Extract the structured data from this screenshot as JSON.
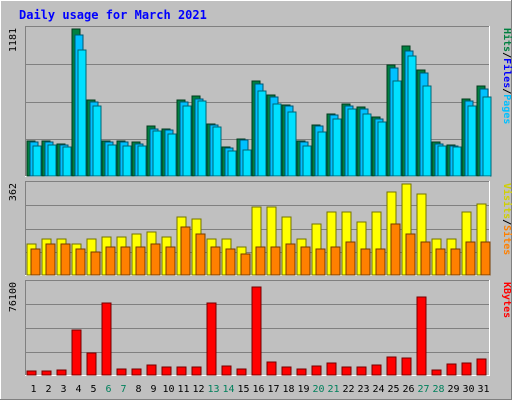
{
  "chart_data": {
    "type": "bar",
    "title": "Daily usage for March 2021",
    "categories": [
      "1",
      "2",
      "3",
      "4",
      "5",
      "6",
      "7",
      "8",
      "9",
      "10",
      "11",
      "12",
      "13",
      "14",
      "15",
      "16",
      "17",
      "18",
      "19",
      "20",
      "21",
      "22",
      "23",
      "24",
      "25",
      "26",
      "27",
      "28",
      "29",
      "30",
      "31"
    ],
    "weekend_days": [
      "6",
      "7",
      "13",
      "14",
      "20",
      "21",
      "27",
      "28"
    ],
    "colors": {
      "hits": "#008040",
      "files": "#00c0ff",
      "pages": "#00e0ff",
      "visits": "#ffff00",
      "sites": "#ff8000",
      "kbytes": "#ff0000",
      "title_text": "#0000ff",
      "weekend_text": "#00805c",
      "weekday_text": "#000000"
    },
    "panels": [
      {
        "id": "top",
        "scale_label": "1181",
        "ylim": [
          0,
          1181
        ],
        "right_labels": [
          {
            "text": "Pages",
            "color": "#00c0ff"
          },
          {
            "text": "/",
            "color": "#000000"
          },
          {
            "text": "Files",
            "color": "#0000ff"
          },
          {
            "text": "/",
            "color": "#000000"
          },
          {
            "text": "Hits",
            "color": "#008040"
          }
        ],
        "series": [
          {
            "name": "Hits",
            "color": "#008040",
            "values": [
              281,
              281,
              261,
              1181,
              611,
              281,
              281,
              271,
              401,
              381,
              611,
              641,
              421,
              231,
              301,
              761,
              651,
              571,
              281,
              411,
              501,
              581,
              551,
              471,
              891,
              1041,
              851,
              271,
              251,
              621,
              721
            ]
          },
          {
            "name": "Files",
            "color": "#00c0ff",
            "values": [
              271,
              271,
              251,
              1131,
              591,
              271,
              271,
              261,
              381,
              371,
              591,
              621,
              411,
              221,
              291,
              741,
              631,
              561,
              271,
              401,
              491,
              561,
              541,
              461,
              871,
              1001,
              831,
              261,
              241,
              601,
              701
            ]
          },
          {
            "name": "Pages",
            "color": "#00e0ff",
            "values": [
              241,
              251,
              231,
              1011,
              561,
              251,
              241,
              241,
              361,
              341,
              561,
              601,
              391,
              201,
              211,
              681,
              581,
              511,
              241,
              351,
              461,
              541,
              501,
              431,
              761,
              961,
              721,
              241,
              231,
              561,
              631
            ]
          }
        ]
      },
      {
        "id": "middle",
        "scale_label": "362",
        "ylim": [
          0,
          362
        ],
        "right_labels": [
          {
            "text": "Sites",
            "color": "#ff8000"
          },
          {
            "text": "/",
            "color": "#000000"
          },
          {
            "text": "Visits",
            "color": "#d0d000"
          }
        ],
        "series": [
          {
            "name": "Visits",
            "color": "#ffff00",
            "values": [
              122,
              142,
              142,
              122,
              142,
              152,
              152,
              162,
              172,
              152,
              232,
              222,
              142,
              142,
              112,
              272,
              272,
              232,
              142,
              202,
              252,
              252,
              212,
              252,
              332,
              362,
              322,
              142,
              142,
              252,
              282
            ]
          },
          {
            "name": "Sites",
            "color": "#ff8000",
            "values": [
              102,
              122,
              122,
              102,
              92,
              112,
              112,
              112,
              122,
              112,
              192,
              162,
              112,
              102,
              82,
              112,
              112,
              122,
              112,
              102,
              112,
              132,
              102,
              102,
              202,
              162,
              132,
              102,
              102,
              132,
              132
            ]
          }
        ]
      },
      {
        "id": "bottom",
        "scale_label": "76100",
        "ylim": [
          0,
          76100
        ],
        "right_labels": [
          {
            "text": "KBytes",
            "color": "#ff0000"
          }
        ],
        "series": [
          {
            "name": "KBytes",
            "color": "#ff0000",
            "values": [
              3200,
              3200,
              4200,
              36900,
              17800,
              59400,
              4700,
              5300,
              8000,
              6300,
              6800,
              6300,
              59400,
              7400,
              5300,
              72600,
              10600,
              6300,
              5300,
              7400,
              10100,
              6300,
              6800,
              8000,
              15200,
              13700,
              64200,
              4200,
              9000,
              10100,
              13200
            ]
          }
        ]
      }
    ]
  }
}
